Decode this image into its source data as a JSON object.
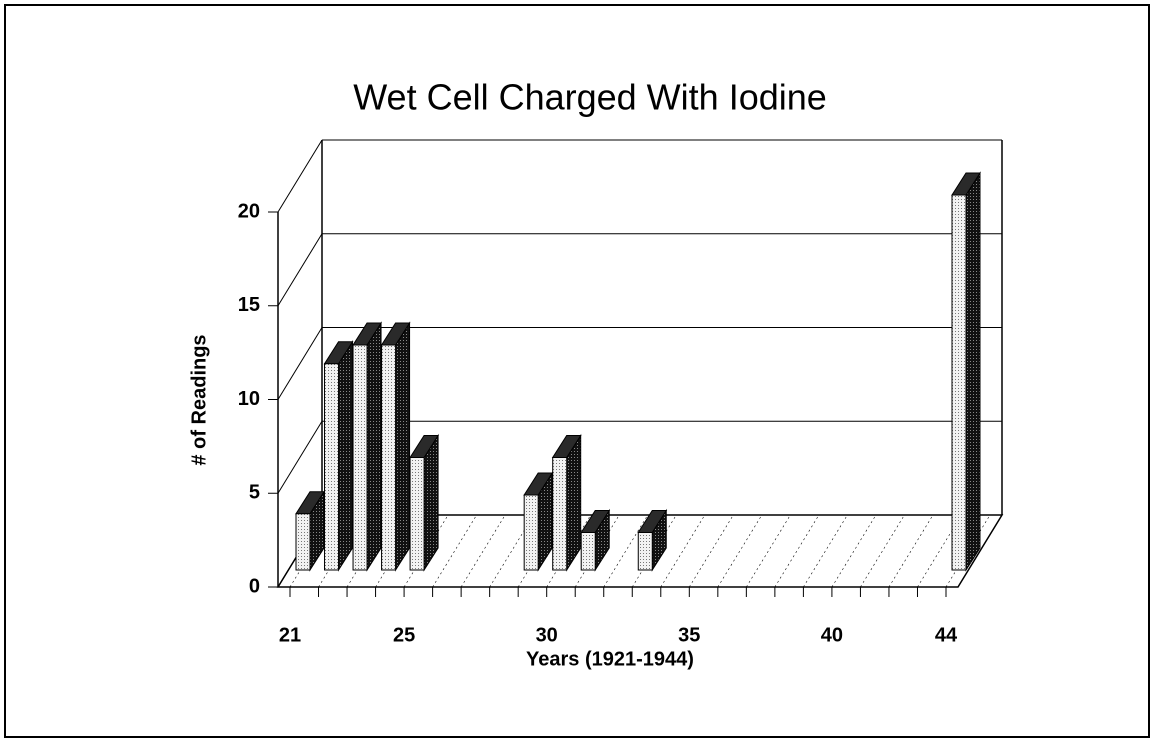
{
  "chart_data": {
    "type": "bar3d",
    "title": "Wet Cell Charged With Iodine",
    "x_label": "Years (1921-1944)",
    "y_label": "# of Readings",
    "categories": [
      "21",
      null,
      null,
      null,
      "25",
      null,
      null,
      null,
      null,
      "30",
      null,
      null,
      null,
      null,
      "35",
      null,
      null,
      null,
      null,
      "40",
      null,
      null,
      null,
      "44"
    ],
    "values": [
      3,
      11,
      12,
      12,
      6,
      0,
      0,
      0,
      4,
      6,
      2,
      0,
      2,
      0,
      0,
      0,
      0,
      0,
      0,
      0,
      0,
      0,
      0,
      20
    ],
    "color": "#e0e0e0",
    "side_color": "#2a2a2a",
    "ylim": [
      0,
      20
    ],
    "yticks": [
      0,
      5,
      10,
      15,
      20
    ],
    "grid": true
  }
}
